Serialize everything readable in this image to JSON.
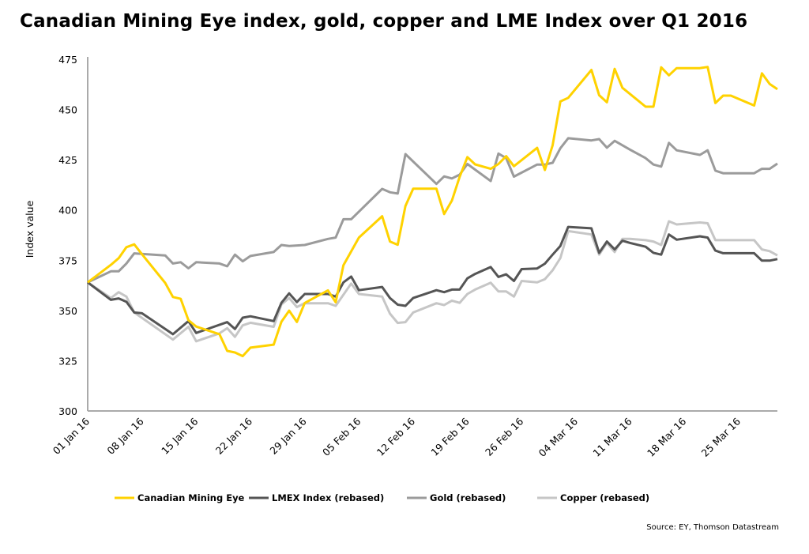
{
  "chart_data": {
    "type": "line",
    "title": "Canadian Mining Eye index, gold, copper and LME Index over Q1 2016",
    "xlabel": "",
    "ylabel": "Index value",
    "ylim": [
      300,
      475
    ],
    "yticks": [
      "300",
      "325",
      "350",
      "375",
      "400",
      "425",
      "450",
      "475"
    ],
    "xlim": [
      "2016-01-01",
      "2016-03-30"
    ],
    "xtick_dates": [
      "2016-01-01",
      "2016-01-08",
      "2016-01-15",
      "2016-01-22",
      "2016-01-29",
      "2016-02-05",
      "2016-02-12",
      "2016-02-19",
      "2016-02-26",
      "2016-03-04",
      "2016-03-11",
      "2016-03-18",
      "2016-03-25"
    ],
    "xticks": [
      "01 Jan 16",
      "08 Jan 16",
      "15 Jan 16",
      "22 Jan 16",
      "29 Jan 16",
      "05 Feb 16",
      "12 Feb 16",
      "19 Feb 16",
      "26 Feb 16",
      "04 Mar 16",
      "11 Mar 16",
      "18 Mar 16",
      "25 Mar 16"
    ],
    "grid": false,
    "legend_position": "bottom",
    "series": [
      {
        "name": "Canadian Mining Eye",
        "color": "#FFD200",
        "points": [
          [
            "2016-01-01",
            364
          ],
          [
            "2016-01-04",
            372.7
          ],
          [
            "2016-01-05",
            376
          ],
          [
            "2016-01-06",
            381.5
          ],
          [
            "2016-01-07",
            382.9
          ],
          [
            "2016-01-08",
            378
          ],
          [
            "2016-01-11",
            363.7
          ],
          [
            "2016-01-12",
            356.7
          ],
          [
            "2016-01-13",
            355.8
          ],
          [
            "2016-01-14",
            345.2
          ],
          [
            "2016-01-15",
            342
          ],
          [
            "2016-01-18",
            338.2
          ],
          [
            "2016-01-19",
            329.9
          ],
          [
            "2016-01-20",
            329.1
          ],
          [
            "2016-01-21",
            327.3
          ],
          [
            "2016-01-22",
            331.5
          ],
          [
            "2016-01-25",
            333
          ],
          [
            "2016-01-26",
            344.4
          ],
          [
            "2016-01-27",
            349.9
          ],
          [
            "2016-01-28",
            344.3
          ],
          [
            "2016-01-29",
            353.7
          ],
          [
            "2016-02-01",
            360
          ],
          [
            "2016-02-02",
            354.1
          ],
          [
            "2016-02-03",
            372.5
          ],
          [
            "2016-02-05",
            386.3
          ],
          [
            "2016-02-08",
            396.9
          ],
          [
            "2016-02-09",
            384.3
          ],
          [
            "2016-02-10",
            382.7
          ],
          [
            "2016-02-11",
            402
          ],
          [
            "2016-02-12",
            410.6
          ],
          [
            "2016-02-15",
            410.6
          ],
          [
            "2016-02-16",
            398
          ],
          [
            "2016-02-17",
            404.7
          ],
          [
            "2016-02-18",
            416.5
          ],
          [
            "2016-02-19",
            426.3
          ],
          [
            "2016-02-20",
            422.7
          ],
          [
            "2016-02-22",
            420.5
          ],
          [
            "2016-02-23",
            422.9
          ],
          [
            "2016-02-24",
            426.8
          ],
          [
            "2016-02-25",
            421.8
          ],
          [
            "2016-02-28",
            430.9
          ],
          [
            "2016-02-29",
            419.9
          ],
          [
            "2016-03-01",
            432.2
          ],
          [
            "2016-03-02",
            454
          ],
          [
            "2016-03-03",
            455.8
          ],
          [
            "2016-03-06",
            469.7
          ],
          [
            "2016-03-07",
            457.1
          ],
          [
            "2016-03-08",
            453.6
          ],
          [
            "2016-03-09",
            470.2
          ],
          [
            "2016-03-10",
            460.8
          ],
          [
            "2016-03-13",
            451.4
          ],
          [
            "2016-03-14",
            451.4
          ],
          [
            "2016-03-15",
            471
          ],
          [
            "2016-03-16",
            467
          ],
          [
            "2016-03-17",
            470.6
          ],
          [
            "2016-03-20",
            470.6
          ],
          [
            "2016-03-21",
            471.2
          ],
          [
            "2016-03-22",
            453.2
          ],
          [
            "2016-03-23",
            456.9
          ],
          [
            "2016-03-24",
            456.9
          ],
          [
            "2016-03-27",
            452
          ],
          [
            "2016-03-28",
            468
          ],
          [
            "2016-03-29",
            462.7
          ],
          [
            "2016-03-30",
            460.1
          ]
        ]
      },
      {
        "name": "LMEX Index (rebased)",
        "color": "#555555",
        "points": [
          [
            "2016-01-01",
            364
          ],
          [
            "2016-01-04",
            355.3
          ],
          [
            "2016-01-05",
            356
          ],
          [
            "2016-01-06",
            354.3
          ],
          [
            "2016-01-07",
            349
          ],
          [
            "2016-01-08",
            348.6
          ],
          [
            "2016-01-12",
            338.2
          ],
          [
            "2016-01-14",
            344.7
          ],
          [
            "2016-01-15",
            338.8
          ],
          [
            "2016-01-19",
            344.2
          ],
          [
            "2016-01-20",
            340.8
          ],
          [
            "2016-01-21",
            346.4
          ],
          [
            "2016-01-22",
            347.1
          ],
          [
            "2016-01-25",
            344.7
          ],
          [
            "2016-01-26",
            353.8
          ],
          [
            "2016-01-27",
            358.5
          ],
          [
            "2016-01-28",
            354.2
          ],
          [
            "2016-01-29",
            358.2
          ],
          [
            "2016-02-01",
            358.2
          ],
          [
            "2016-02-02",
            356.9
          ],
          [
            "2016-02-03",
            364
          ],
          [
            "2016-02-04",
            366.9
          ],
          [
            "2016-02-05",
            360.1
          ],
          [
            "2016-02-08",
            361.7
          ],
          [
            "2016-02-09",
            356.2
          ],
          [
            "2016-02-10",
            352.9
          ],
          [
            "2016-02-11",
            352.3
          ],
          [
            "2016-02-12",
            356.2
          ],
          [
            "2016-02-15",
            360.1
          ],
          [
            "2016-02-16",
            359.1
          ],
          [
            "2016-02-17",
            360.4
          ],
          [
            "2016-02-18",
            360.4
          ],
          [
            "2016-02-19",
            366
          ],
          [
            "2016-02-20",
            368.2
          ],
          [
            "2016-02-22",
            371.6
          ],
          [
            "2016-02-23",
            366.7
          ],
          [
            "2016-02-24",
            368
          ],
          [
            "2016-02-25",
            364.7
          ],
          [
            "2016-02-26",
            370.6
          ],
          [
            "2016-02-28",
            370.9
          ],
          [
            "2016-02-29",
            373.3
          ],
          [
            "2016-03-01",
            377.8
          ],
          [
            "2016-03-02",
            382.1
          ],
          [
            "2016-03-03",
            391.6
          ],
          [
            "2016-03-06",
            390.9
          ],
          [
            "2016-03-07",
            378.7
          ],
          [
            "2016-03-08",
            384.3
          ],
          [
            "2016-03-09",
            380.4
          ],
          [
            "2016-03-10",
            384.7
          ],
          [
            "2016-03-11",
            383.6
          ],
          [
            "2016-03-13",
            381.7
          ],
          [
            "2016-03-14",
            378.7
          ],
          [
            "2016-03-15",
            377.8
          ],
          [
            "2016-03-16",
            387.8
          ],
          [
            "2016-03-17",
            385.2
          ],
          [
            "2016-03-20",
            386.9
          ],
          [
            "2016-03-21",
            386.3
          ],
          [
            "2016-03-22",
            379.8
          ],
          [
            "2016-03-23",
            378.5
          ],
          [
            "2016-03-27",
            378.5
          ],
          [
            "2016-03-28",
            374.8
          ],
          [
            "2016-03-29",
            374.8
          ],
          [
            "2016-03-30",
            375.6
          ]
        ]
      },
      {
        "name": "Gold (rebased)",
        "color": "#9B9B9B",
        "points": [
          [
            "2016-01-01",
            364
          ],
          [
            "2016-01-04",
            369.5
          ],
          [
            "2016-01-05",
            369.5
          ],
          [
            "2016-01-06",
            373.4
          ],
          [
            "2016-01-07",
            378.4
          ],
          [
            "2016-01-11",
            377.4
          ],
          [
            "2016-01-12",
            373.4
          ],
          [
            "2016-01-13",
            374
          ],
          [
            "2016-01-14",
            371
          ],
          [
            "2016-01-15",
            374
          ],
          [
            "2016-01-18",
            373.4
          ],
          [
            "2016-01-19",
            372
          ],
          [
            "2016-01-20",
            377.8
          ],
          [
            "2016-01-21",
            374.5
          ],
          [
            "2016-01-22",
            377.1
          ],
          [
            "2016-01-25",
            379.1
          ],
          [
            "2016-01-26",
            382.6
          ],
          [
            "2016-01-27",
            382.1
          ],
          [
            "2016-01-29",
            382.6
          ],
          [
            "2016-02-01",
            385.6
          ],
          [
            "2016-02-02",
            386.3
          ],
          [
            "2016-02-03",
            395.4
          ],
          [
            "2016-02-04",
            395.4
          ],
          [
            "2016-02-08",
            410.5
          ],
          [
            "2016-02-09",
            408.8
          ],
          [
            "2016-02-10",
            408.2
          ],
          [
            "2016-02-11",
            427.8
          ],
          [
            "2016-02-15",
            413
          ],
          [
            "2016-02-16",
            416.7
          ],
          [
            "2016-02-17",
            415.7
          ],
          [
            "2016-02-18",
            417.6
          ],
          [
            "2016-02-19",
            422.9
          ],
          [
            "2016-02-22",
            414.4
          ],
          [
            "2016-02-23",
            428.1
          ],
          [
            "2016-02-24",
            425.8
          ],
          [
            "2016-02-25",
            416.6
          ],
          [
            "2016-02-28",
            422.6
          ],
          [
            "2016-02-29",
            422.6
          ],
          [
            "2016-03-01",
            423.5
          ],
          [
            "2016-03-02",
            430.7
          ],
          [
            "2016-03-03",
            435.7
          ],
          [
            "2016-03-06",
            434.6
          ],
          [
            "2016-03-07",
            435.3
          ],
          [
            "2016-03-08",
            431
          ],
          [
            "2016-03-09",
            434.4
          ],
          [
            "2016-03-11",
            430
          ],
          [
            "2016-03-13",
            425.8
          ],
          [
            "2016-03-14",
            422.6
          ],
          [
            "2016-03-15",
            421.6
          ],
          [
            "2016-03-16",
            433.4
          ],
          [
            "2016-03-17",
            429.7
          ],
          [
            "2016-03-20",
            427.4
          ],
          [
            "2016-03-21",
            429.7
          ],
          [
            "2016-03-22",
            419.6
          ],
          [
            "2016-03-23",
            418.3
          ],
          [
            "2016-03-27",
            418.3
          ],
          [
            "2016-03-28",
            420.5
          ],
          [
            "2016-03-29",
            420.5
          ],
          [
            "2016-03-30",
            423.1
          ]
        ]
      },
      {
        "name": "Copper (rebased)",
        "color": "#C6C6C6",
        "points": [
          [
            "2016-01-01",
            364
          ],
          [
            "2016-01-04",
            356.2
          ],
          [
            "2016-01-05",
            359.1
          ],
          [
            "2016-01-06",
            356.9
          ],
          [
            "2016-01-07",
            349
          ],
          [
            "2016-01-12",
            335.5
          ],
          [
            "2016-01-14",
            341.9
          ],
          [
            "2016-01-15",
            334.7
          ],
          [
            "2016-01-18",
            338.6
          ],
          [
            "2016-01-19",
            341.2
          ],
          [
            "2016-01-20",
            336.9
          ],
          [
            "2016-01-21",
            342.6
          ],
          [
            "2016-01-22",
            343.9
          ],
          [
            "2016-01-25",
            341.9
          ],
          [
            "2016-01-26",
            353
          ],
          [
            "2016-01-27",
            356.2
          ],
          [
            "2016-01-28",
            351.7
          ],
          [
            "2016-01-29",
            353.6
          ],
          [
            "2016-02-01",
            353.6
          ],
          [
            "2016-02-02",
            352.3
          ],
          [
            "2016-02-04",
            363.4
          ],
          [
            "2016-02-05",
            358.2
          ],
          [
            "2016-02-08",
            356.9
          ],
          [
            "2016-02-09",
            348.4
          ],
          [
            "2016-02-10",
            343.8
          ],
          [
            "2016-02-11",
            344.2
          ],
          [
            "2016-02-12",
            349
          ],
          [
            "2016-02-15",
            353.6
          ],
          [
            "2016-02-16",
            352.7
          ],
          [
            "2016-02-17",
            354.9
          ],
          [
            "2016-02-18",
            353.8
          ],
          [
            "2016-02-19",
            358.2
          ],
          [
            "2016-02-20",
            360.4
          ],
          [
            "2016-02-22",
            363.8
          ],
          [
            "2016-02-23",
            359.5
          ],
          [
            "2016-02-24",
            359.5
          ],
          [
            "2016-02-25",
            356.9
          ],
          [
            "2016-02-26",
            364.7
          ],
          [
            "2016-02-28",
            364
          ],
          [
            "2016-02-29",
            365.6
          ],
          [
            "2016-03-01",
            370
          ],
          [
            "2016-03-02",
            376.1
          ],
          [
            "2016-03-03",
            389.5
          ],
          [
            "2016-03-06",
            387.8
          ],
          [
            "2016-03-07",
            377.8
          ],
          [
            "2016-03-08",
            383.6
          ],
          [
            "2016-03-09",
            379.1
          ],
          [
            "2016-03-10",
            385.6
          ],
          [
            "2016-03-11",
            385.6
          ],
          [
            "2016-03-13",
            385
          ],
          [
            "2016-03-14",
            384.3
          ],
          [
            "2016-03-15",
            382.6
          ],
          [
            "2016-03-16",
            394.4
          ],
          [
            "2016-03-17",
            392.8
          ],
          [
            "2016-03-20",
            393.8
          ],
          [
            "2016-03-21",
            393.4
          ],
          [
            "2016-03-22",
            385
          ],
          [
            "2016-03-27",
            385
          ],
          [
            "2016-03-28",
            380.4
          ],
          [
            "2016-03-29",
            379.5
          ],
          [
            "2016-03-30",
            377.4
          ]
        ]
      }
    ],
    "source": "Source: EY, Thomson Datastream"
  }
}
